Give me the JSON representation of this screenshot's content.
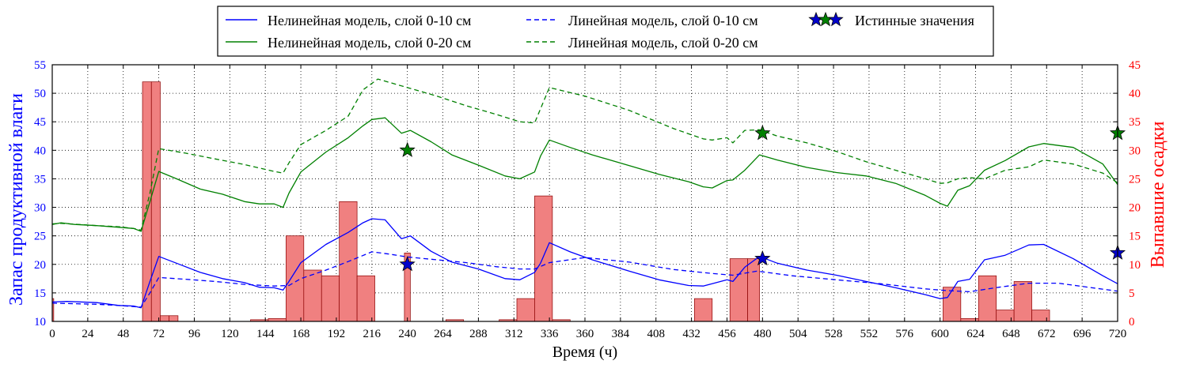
{
  "chart_data": {
    "type": "line",
    "title": "",
    "xlabel": "Время (ч)",
    "ylabel_left": "Запас продуктивной влаги",
    "ylabel_right": "Выпавшие осадки",
    "xlim": [
      0,
      720
    ],
    "ylim_left": [
      10,
      55
    ],
    "ylim_right": [
      0,
      45
    ],
    "x_ticks": [
      0,
      24,
      48,
      72,
      96,
      120,
      144,
      168,
      192,
      216,
      240,
      264,
      288,
      312,
      336,
      360,
      384,
      408,
      432,
      456,
      480,
      504,
      528,
      552,
      576,
      600,
      624,
      648,
      672,
      696,
      720
    ],
    "y_ticks_left": [
      10,
      15,
      20,
      25,
      30,
      35,
      40,
      45,
      50,
      55
    ],
    "y_ticks_right": [
      0,
      5,
      10,
      15,
      20,
      25,
      30,
      35,
      40,
      45
    ],
    "grid": true,
    "legend_position": "top-center",
    "colors": {
      "layer_10": "#0000ff",
      "layer_20": "#008000",
      "precip_fill": "#f08080",
      "precip_edge": "#8b0000",
      "left_axis": "#0000ff",
      "right_axis": "#ff0000",
      "true_star_10": "#0000cc",
      "true_star_20": "#008000"
    },
    "series": [
      {
        "name": "Нелинейная модель, слой 0-10 см",
        "axis": "left",
        "color": "#0000ff",
        "dash": "solid",
        "x": [
          0,
          10,
          30,
          45,
          55,
          60,
          66,
          72,
          84,
          100,
          115,
          130,
          140,
          150,
          156,
          160,
          168,
          185,
          200,
          210,
          216,
          225,
          236,
          242,
          256,
          270,
          288,
          306,
          316,
          326,
          330,
          336,
          350,
          365,
          390,
          410,
          430,
          440,
          446,
          456,
          460,
          468,
          478,
          490,
          510,
          530,
          550,
          570,
          590,
          600,
          605,
          612,
          620,
          630,
          644,
          660,
          670,
          690,
          710,
          720
        ],
        "y": [
          13.4,
          13.5,
          13.3,
          12.8,
          12.7,
          12.4,
          17.0,
          21.4,
          20.2,
          18.6,
          17.5,
          16.8,
          16.0,
          15.9,
          15.5,
          17.0,
          20.3,
          23.5,
          25.6,
          27.3,
          28.0,
          27.8,
          24.5,
          25.0,
          22.3,
          20.4,
          19.2,
          17.5,
          17.3,
          18.6,
          20.2,
          23.8,
          22.2,
          20.8,
          18.8,
          17.3,
          16.3,
          16.2,
          16.6,
          17.3,
          17.0,
          19.5,
          21.4,
          20.2,
          19.0,
          18.1,
          17.0,
          15.9,
          14.7,
          14.0,
          14.2,
          17.0,
          17.4,
          20.8,
          21.6,
          23.4,
          23.5,
          21.0,
          18.0,
          16.6
        ]
      },
      {
        "name": "Нелинейная модель, слой 0-20 см",
        "axis": "left",
        "color": "#008000",
        "dash": "solid",
        "x": [
          0,
          6,
          15,
          30,
          45,
          55,
          60,
          66,
          72,
          84,
          100,
          115,
          130,
          140,
          150,
          156,
          160,
          168,
          185,
          200,
          210,
          216,
          225,
          236,
          242,
          256,
          270,
          288,
          306,
          316,
          326,
          330,
          336,
          350,
          365,
          390,
          410,
          430,
          440,
          446,
          456,
          460,
          468,
          478,
          490,
          510,
          530,
          550,
          570,
          590,
          600,
          605,
          612,
          620,
          630,
          644,
          660,
          670,
          690,
          710,
          720
        ],
        "y": [
          27.0,
          27.3,
          27.0,
          26.8,
          26.5,
          26.3,
          25.8,
          31.0,
          36.3,
          35.0,
          33.2,
          32.3,
          31.0,
          30.6,
          30.6,
          30.0,
          32.5,
          36.2,
          39.7,
          42.2,
          44.3,
          45.4,
          45.7,
          43.0,
          43.5,
          41.5,
          39.2,
          37.4,
          35.5,
          35.0,
          36.2,
          39.0,
          41.8,
          40.5,
          39.2,
          37.3,
          35.8,
          34.5,
          33.6,
          33.4,
          34.7,
          34.8,
          36.5,
          39.2,
          38.3,
          37.0,
          36.1,
          35.5,
          34.2,
          32.1,
          30.7,
          30.2,
          33.0,
          33.8,
          36.5,
          38.2,
          40.6,
          41.2,
          40.5,
          37.6,
          34.0
        ]
      },
      {
        "name": "Линейная модель, слой 0-10 см",
        "axis": "left",
        "color": "#0000ff",
        "dash": "dashed",
        "x": [
          0,
          30,
          45,
          55,
          60,
          66,
          72,
          90,
          110,
          130,
          150,
          160,
          168,
          185,
          200,
          216,
          228,
          240,
          260,
          280,
          300,
          316,
          326,
          336,
          360,
          390,
          420,
          446,
          460,
          476,
          480,
          500,
          530,
          560,
          590,
          605,
          620,
          640,
          660,
          680,
          700,
          720
        ],
        "y": [
          13.2,
          13.0,
          12.8,
          12.6,
          12.5,
          15.0,
          17.7,
          17.4,
          17.0,
          16.5,
          16.2,
          16.3,
          17.5,
          19.0,
          20.5,
          22.2,
          21.8,
          21.3,
          20.8,
          20.3,
          19.6,
          19.2,
          19.2,
          20.3,
          21.2,
          20.4,
          19.1,
          18.4,
          18.1,
          18.8,
          18.7,
          18.0,
          17.3,
          16.6,
          15.7,
          15.4,
          15.2,
          16.0,
          16.7,
          16.7,
          16.0,
          15.3
        ]
      },
      {
        "name": "Линейная модель, слой 0-20 см",
        "axis": "left",
        "color": "#008000",
        "dash": "dashed",
        "x": [
          0,
          6,
          30,
          45,
          55,
          60,
          66,
          72,
          90,
          110,
          130,
          150,
          156,
          160,
          168,
          185,
          200,
          210,
          220,
          240,
          260,
          280,
          300,
          316,
          326,
          336,
          360,
          390,
          420,
          440,
          446,
          456,
          460,
          468,
          478,
          490,
          510,
          530,
          550,
          570,
          590,
          600,
          605,
          612,
          620,
          630,
          644,
          660,
          670,
          690,
          710,
          720
        ],
        "y": [
          27.1,
          27.2,
          26.8,
          26.6,
          26.3,
          26.0,
          32.5,
          40.3,
          39.5,
          38.5,
          37.5,
          36.3,
          36.0,
          37.8,
          41.0,
          43.5,
          46.0,
          50.6,
          52.5,
          51.0,
          49.5,
          47.8,
          46.3,
          45.0,
          44.8,
          51.0,
          49.5,
          47.0,
          43.8,
          42.0,
          41.8,
          42.2,
          41.3,
          43.5,
          43.6,
          42.5,
          41.3,
          39.8,
          38.0,
          36.5,
          35.0,
          34.2,
          34.3,
          35.0,
          35.2,
          35.0,
          36.5,
          37.1,
          38.3,
          37.6,
          36.0,
          34.3
        ]
      }
    ],
    "true_values": {
      "name": "Истинные значения",
      "layer_10": {
        "x": [
          240,
          480,
          720
        ],
        "y": [
          20,
          21,
          22
        ]
      },
      "layer_20": {
        "x": [
          240,
          480,
          720
        ],
        "y": [
          40,
          43,
          43
        ]
      }
    },
    "precipitation": {
      "axis": "right",
      "bars": [
        {
          "x0": 0,
          "x1": 1,
          "value": 4
        },
        {
          "x0": 61,
          "x1": 67,
          "value": 42
        },
        {
          "x0": 67,
          "x1": 73,
          "value": 42
        },
        {
          "x0": 73,
          "x1": 79,
          "value": 1
        },
        {
          "x0": 79,
          "x1": 85,
          "value": 1
        },
        {
          "x0": 134,
          "x1": 146,
          "value": 0.3
        },
        {
          "x0": 146,
          "x1": 158,
          "value": 0.5
        },
        {
          "x0": 158,
          "x1": 170,
          "value": 15
        },
        {
          "x0": 170,
          "x1": 182,
          "value": 9
        },
        {
          "x0": 182,
          "x1": 194,
          "value": 8
        },
        {
          "x0": 194,
          "x1": 206,
          "value": 21
        },
        {
          "x0": 206,
          "x1": 218,
          "value": 8
        },
        {
          "x0": 238,
          "x1": 242,
          "value": 12
        },
        {
          "x0": 266,
          "x1": 278,
          "value": 0.3
        },
        {
          "x0": 302,
          "x1": 314,
          "value": 0.3
        },
        {
          "x0": 314,
          "x1": 326,
          "value": 4
        },
        {
          "x0": 326,
          "x1": 338,
          "value": 22
        },
        {
          "x0": 338,
          "x1": 350,
          "value": 0.3
        },
        {
          "x0": 434,
          "x1": 446,
          "value": 4
        },
        {
          "x0": 458,
          "x1": 470,
          "value": 11
        },
        {
          "x0": 470,
          "x1": 478,
          "value": 11
        },
        {
          "x0": 602,
          "x1": 614,
          "value": 6
        },
        {
          "x0": 614,
          "x1": 626,
          "value": 0.5
        },
        {
          "x0": 626,
          "x1": 638,
          "value": 8
        },
        {
          "x0": 638,
          "x1": 650,
          "value": 2
        },
        {
          "x0": 650,
          "x1": 662,
          "value": 7
        },
        {
          "x0": 662,
          "x1": 674,
          "value": 2
        }
      ]
    },
    "legend": [
      {
        "label": "Нелинейная модель, слой 0-10 см",
        "color": "#0000ff",
        "dash": "solid"
      },
      {
        "label": "Линейная модель, слой 0-10 см",
        "color": "#0000ff",
        "dash": "dashed"
      },
      {
        "label": "Истинные значения",
        "marker": "star"
      },
      {
        "label": "Нелинейная модель, слой 0-20 см",
        "color": "#008000",
        "dash": "solid"
      },
      {
        "label": "Линейная модель, слой 0-20 см",
        "color": "#008000",
        "dash": "dashed"
      }
    ]
  }
}
